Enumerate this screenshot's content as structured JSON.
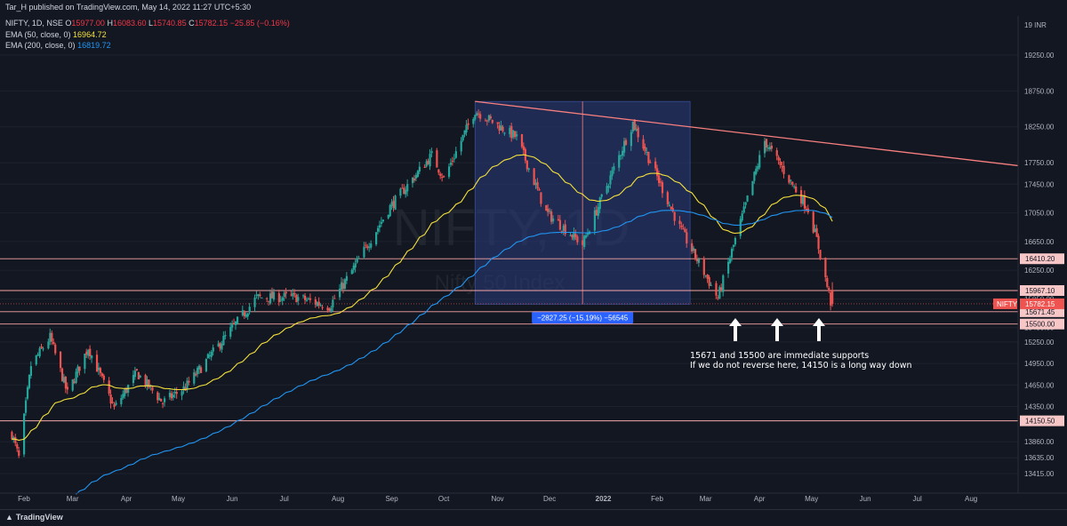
{
  "header": {
    "published": "Tar_H published on TradingView.com, May 14, 2022 11:27 UTC+5:30"
  },
  "legend": {
    "symbol": "NIFTY, 1D, NSE",
    "o_label": "O",
    "o_value": "15977.00",
    "h_label": "H",
    "h_value": "16083.60",
    "l_label": "L",
    "l_value": "15740.85",
    "c_label": "C",
    "c_value": "15782.15",
    "change": "−25.85 (−0.16%)",
    "ema50_label": "EMA (50, close, 0)",
    "ema50_value": "16964.72",
    "ema200_label": "EMA (200, close, 0)",
    "ema200_value": "16819.72"
  },
  "watermark": {
    "symbol": "NIFTY, 1D",
    "name": "Nifty 50 Index"
  },
  "measure": {
    "label": "−2827.25 (−15.19%) −56545"
  },
  "annotation": {
    "line1": "15671 and 15500 are immediate supports",
    "line2": "If we do not reverse here, 14150 is a long way down"
  },
  "footer": {
    "brand": "TradingView"
  },
  "colors": {
    "up": "#26a69a",
    "down": "#ef5350",
    "ema50": "#f5e13c",
    "ema200": "#2196f3",
    "level": "#f7a6a6",
    "trend": "#f77f7f",
    "box": "#2a3d7a",
    "background": "#131722"
  },
  "chart_data": {
    "type": "candlestick",
    "title": "",
    "currency": "INR",
    "price_axis_ticks": [
      "19250.00",
      "18750.00",
      "18250.00",
      "17750.00",
      "17450.00",
      "17050.00",
      "16650.00",
      "16250.00",
      "15850.00",
      "15450.00",
      "15250.00",
      "14950.00",
      "14650.00",
      "14350.00",
      "14150.00",
      "13860.00",
      "13635.00",
      "13415.00"
    ],
    "y_top_label": "19",
    "x_axis_labels": [
      "Feb",
      "Mar",
      "Apr",
      "May",
      "Jun",
      "Jul",
      "Aug",
      "Sep",
      "Oct",
      "Nov",
      "Dec",
      "2022",
      "Feb",
      "Mar",
      "Apr",
      "May",
      "Jun",
      "Jul",
      "Aug"
    ],
    "horizontal_levels": [
      {
        "price": 16410.2,
        "label": "16410.20"
      },
      {
        "price": 15967.1,
        "label": "15967.10"
      },
      {
        "price": 15671.45,
        "label": "15671.45"
      },
      {
        "price": 15500.0,
        "label": "15500.00"
      },
      {
        "price": 14150.5,
        "label": "14150.50"
      }
    ],
    "last_price": {
      "symbol": "NIFTY",
      "price": 15782.15,
      "label": "15782.15"
    },
    "trendline": {
      "from_date": "2021-10-19",
      "from_price": 18604,
      "to_date": "2022-08-31",
      "to_price": 17700
    },
    "measure_box": {
      "from_date": "2021-10-19",
      "to_date": "2022-02-20",
      "from_price": 18604,
      "to_price": 15776.75,
      "change": -2827.25,
      "pct": -15.19,
      "volume": -56545
    },
    "ema50_last": 16964.72,
    "ema200_last": 16819.72,
    "price_path": [
      {
        "date": "2021-01-25",
        "price": 13970
      },
      {
        "date": "2021-01-29",
        "price": 13634
      },
      {
        "date": "2021-02-05",
        "price": 14924
      },
      {
        "date": "2021-02-16",
        "price": 15315
      },
      {
        "date": "2021-02-26",
        "price": 14529
      },
      {
        "date": "2021-03-10",
        "price": 15174
      },
      {
        "date": "2021-03-25",
        "price": 14324
      },
      {
        "date": "2021-04-07",
        "price": 14819
      },
      {
        "date": "2021-04-22",
        "price": 14406
      },
      {
        "date": "2021-05-05",
        "price": 14617
      },
      {
        "date": "2021-05-24",
        "price": 15197
      },
      {
        "date": "2021-06-15",
        "price": 15869
      },
      {
        "date": "2021-07-07",
        "price": 15879
      },
      {
        "date": "2021-07-27",
        "price": 15746
      },
      {
        "date": "2021-08-10",
        "price": 16280
      },
      {
        "date": "2021-08-31",
        "price": 17132
      },
      {
        "date": "2021-09-24",
        "price": 17853
      },
      {
        "date": "2021-10-01",
        "price": 17532
      },
      {
        "date": "2021-10-19",
        "price": 18477
      },
      {
        "date": "2021-11-12",
        "price": 18102
      },
      {
        "date": "2021-11-29",
        "price": 17053
      },
      {
        "date": "2021-12-20",
        "price": 16614
      },
      {
        "date": "2022-01-18",
        "price": 18308
      },
      {
        "date": "2022-02-14",
        "price": 16842
      },
      {
        "date": "2022-03-08",
        "price": 15863
      },
      {
        "date": "2022-04-04",
        "price": 18053
      },
      {
        "date": "2022-04-29",
        "price": 17102
      },
      {
        "date": "2022-05-04",
        "price": 16677
      },
      {
        "date": "2022-05-12",
        "price": 15808
      },
      {
        "date": "2022-05-13",
        "price": 15782.15
      }
    ]
  }
}
